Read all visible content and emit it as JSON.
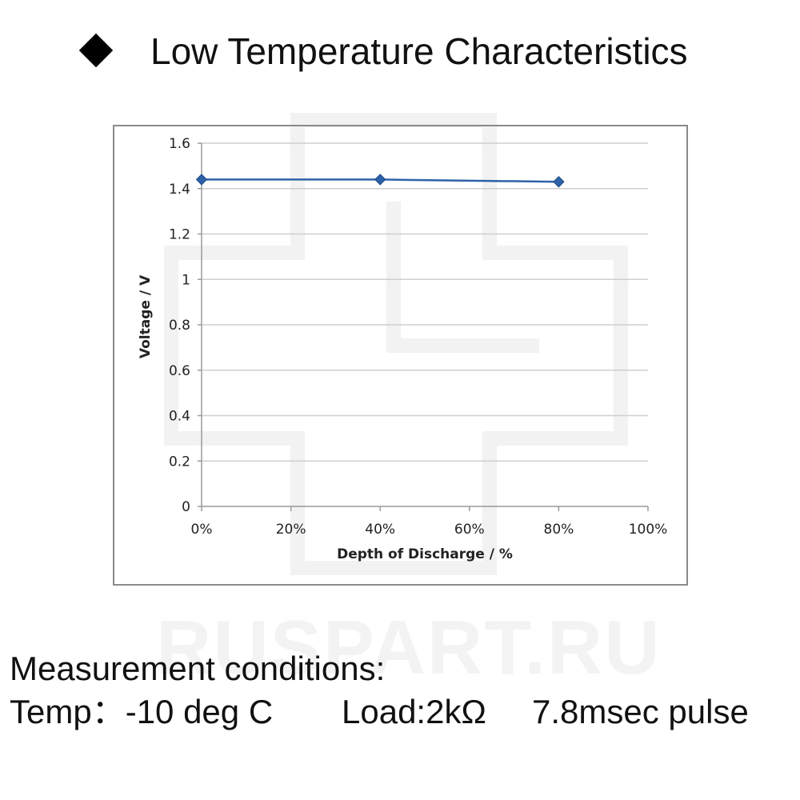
{
  "header": {
    "title": "Low Temperature Characteristics",
    "bullet_icon": "diamond-bullet-icon"
  },
  "watermark": {
    "text": "RUSPART.RU",
    "logo_icon": "ruspart-logo-icon"
  },
  "conditions": {
    "heading": "Measurement conditions:",
    "temp": "Temp：-10 deg C",
    "load": "Load:2kΩ",
    "pulse": "7.8msec pulse"
  },
  "chart_data": {
    "type": "line",
    "title": "",
    "xlabel": "Depth of Discharge / %",
    "ylabel": "Voltage  / V",
    "x_ticks": [
      "0%",
      "20%",
      "40%",
      "60%",
      "80%",
      "100%"
    ],
    "y_ticks": [
      "0",
      "0.2",
      "0.4",
      "0.6",
      "0.8",
      "1",
      "1.2",
      "1.4",
      "1.6"
    ],
    "xlim": [
      0,
      100
    ],
    "ylim": [
      0,
      1.6
    ],
    "grid": "horizontal",
    "series": [
      {
        "x": [
          0,
          40,
          80
        ],
        "y": [
          1.44,
          1.44,
          1.43
        ],
        "color": "#2e62a8",
        "marker": "diamond"
      }
    ]
  }
}
